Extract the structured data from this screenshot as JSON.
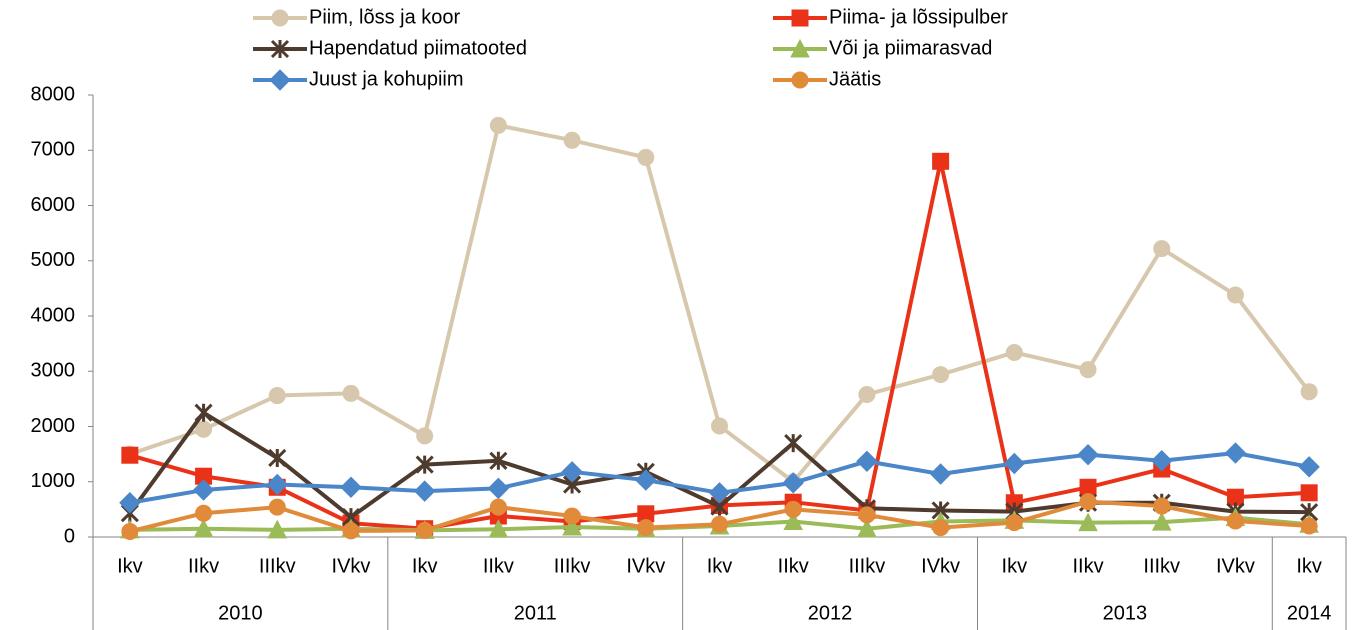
{
  "chart_data": {
    "type": "line",
    "categories": [
      "Ikv",
      "IIkv",
      "IIIkv",
      "IVkv",
      "Ikv",
      "IIkv",
      "IIIkv",
      "IVkv",
      "Ikv",
      "IIkv",
      "IIIkv",
      "IVkv",
      "Ikv",
      "IIkv",
      "IIIkv",
      "IVkv",
      "Ikv"
    ],
    "year_groups": [
      {
        "label": "2010",
        "count": 4
      },
      {
        "label": "2011",
        "count": 4
      },
      {
        "label": "2012",
        "count": 4
      },
      {
        "label": "2013",
        "count": 4
      },
      {
        "label": "2014",
        "count": 1
      }
    ],
    "ylim": [
      0,
      8000
    ],
    "yticks": [
      0,
      1000,
      2000,
      3000,
      4000,
      5000,
      6000,
      7000,
      8000
    ],
    "grid": false,
    "legend": "top",
    "series": [
      {
        "name": "Piim, lõss ja koor",
        "color": "#d7c7ad",
        "marker": "circle",
        "values": [
          1500,
          1950,
          2560,
          2600,
          1830,
          7450,
          7180,
          6870,
          2010,
          1000,
          2580,
          2940,
          3340,
          3030,
          5220,
          4380,
          2630
        ]
      },
      {
        "name": "Piima- ja lõssipulber",
        "color": "#ea3219",
        "marker": "square",
        "values": [
          1480,
          1100,
          900,
          250,
          150,
          380,
          280,
          420,
          570,
          630,
          480,
          6800,
          620,
          900,
          1230,
          720,
          800
        ]
      },
      {
        "name": "Hapendatud piimatooted",
        "color": "#4e3b2e",
        "marker": "star",
        "values": [
          430,
          2250,
          1430,
          360,
          1310,
          1380,
          950,
          1180,
          550,
          1700,
          520,
          480,
          460,
          620,
          620,
          460,
          450
        ]
      },
      {
        "name": "Või ja piimarasvad",
        "color": "#9bbb59",
        "marker": "triangle",
        "values": [
          130,
          150,
          130,
          150,
          120,
          140,
          180,
          150,
          200,
          280,
          150,
          280,
          300,
          260,
          270,
          350,
          230
        ]
      },
      {
        "name": "Juust ja kohupiim",
        "color": "#4a86c8",
        "marker": "diamond",
        "values": [
          620,
          850,
          950,
          900,
          830,
          880,
          1180,
          1030,
          800,
          980,
          1370,
          1140,
          1330,
          1490,
          1380,
          1520,
          1270
        ]
      },
      {
        "name": "Jäätis",
        "color": "#e08a3a",
        "marker": "circle",
        "values": [
          100,
          430,
          540,
          110,
          120,
          540,
          380,
          170,
          230,
          500,
          400,
          170,
          260,
          640,
          560,
          290,
          200
        ]
      }
    ]
  }
}
